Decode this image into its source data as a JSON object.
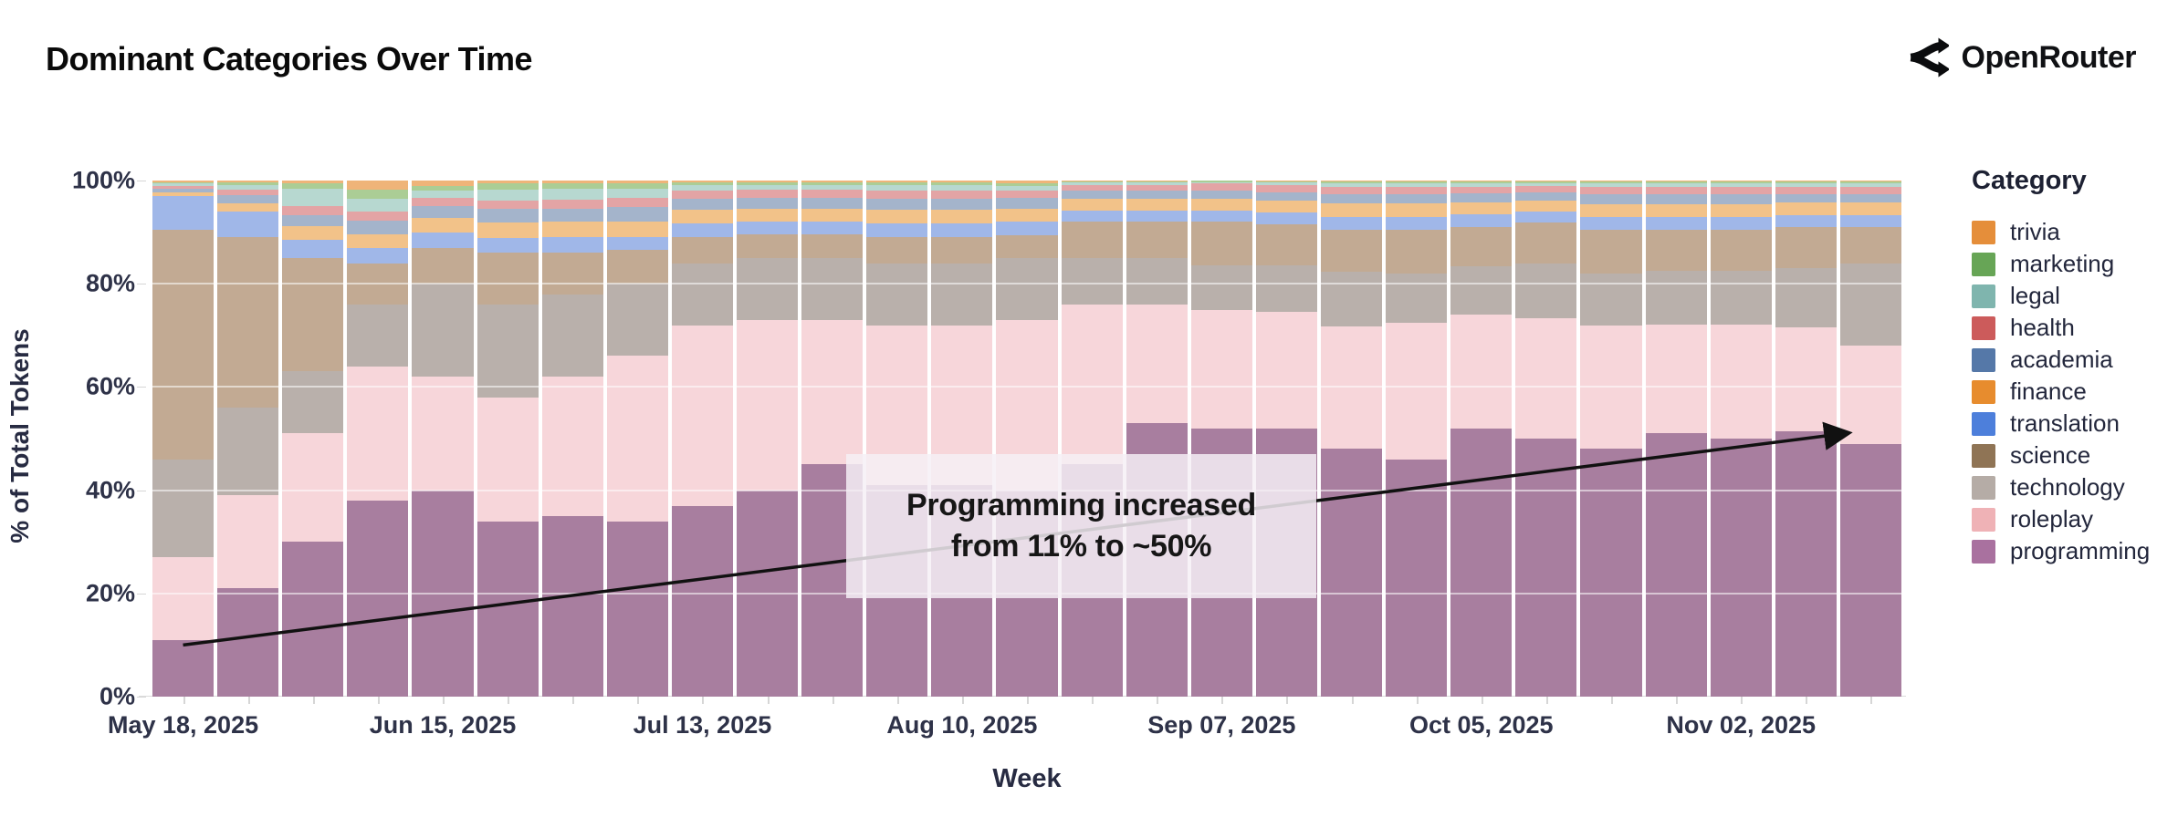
{
  "header": {
    "title": "Dominant Categories Over Time",
    "brand": "OpenRouter"
  },
  "chart_data": {
    "type": "bar",
    "variant": "stacked-normalized-weekly",
    "title": "Dominant Categories Over Time",
    "xlabel": "Week",
    "ylabel": "% of Total Tokens",
    "ylim": [
      0,
      100
    ],
    "ytick_values": [
      0,
      20,
      40,
      60,
      80,
      100
    ],
    "ytick_labels": [
      "0%",
      "20%",
      "40%",
      "60%",
      "80%",
      "100%"
    ],
    "grid": "horizontal-white-overlay",
    "x": [
      "May 18, 2025",
      "May 25, 2025",
      "Jun 01, 2025",
      "Jun 08, 2025",
      "Jun 15, 2025",
      "Jun 22, 2025",
      "Jun 29, 2025",
      "Jul 06, 2025",
      "Jul 13, 2025",
      "Jul 20, 2025",
      "Jul 27, 2025",
      "Aug 03, 2025",
      "Aug 10, 2025",
      "Aug 17, 2025",
      "Aug 24, 2025",
      "Aug 31, 2025",
      "Sep 07, 2025",
      "Sep 14, 2025",
      "Sep 21, 2025",
      "Sep 28, 2025",
      "Oct 05, 2025",
      "Oct 12, 2025",
      "Oct 19, 2025",
      "Oct 26, 2025",
      "Nov 02, 2025",
      "Nov 09, 2025",
      "Nov 16, 2025"
    ],
    "x_labeled_tick_indices": [
      0,
      4,
      8,
      12,
      16,
      20,
      24
    ],
    "x_labeled_ticks": [
      "May 18, 2025",
      "Jun 15, 2025",
      "Jul 13, 2025",
      "Aug 10, 2025",
      "Sep 07, 2025",
      "Oct 05, 2025",
      "Nov 02, 2025"
    ],
    "series": [
      {
        "name": "programming",
        "legend_color": "#A9719F",
        "fill": "#A87E9F",
        "values": [
          11,
          21,
          30,
          38,
          40,
          34,
          35,
          34,
          37,
          40,
          45,
          41,
          41,
          40,
          45,
          53,
          52,
          52,
          48,
          46,
          52,
          50,
          48,
          51,
          50,
          51.5,
          49
        ]
      },
      {
        "name": "roleplay",
        "legend_color": "#EFB2B6",
        "fill": "#F7D6DA",
        "values": [
          16,
          18,
          21,
          26,
          22,
          24,
          27,
          32,
          35,
          33,
          28,
          31,
          31,
          33,
          31,
          23,
          23,
          22.5,
          23.8,
          26.4,
          22,
          23.4,
          24,
          21,
          22,
          20,
          19
        ]
      },
      {
        "name": "technology",
        "legend_color": "#B5ACA6",
        "fill": "#B9B0AB",
        "values": [
          19,
          17,
          12,
          12,
          18,
          18,
          16,
          14,
          12,
          12,
          12,
          12,
          12,
          12,
          9,
          9,
          8.5,
          9,
          10.5,
          9.6,
          9.4,
          10.6,
          10,
          10.5,
          10.5,
          11.5,
          16
        ]
      },
      {
        "name": "science",
        "legend_color": "#8F7455",
        "fill": "#C2AA93",
        "values": [
          44.5,
          33,
          22,
          8,
          7,
          10,
          8,
          6.5,
          5,
          4.5,
          4.5,
          5,
          5,
          4.5,
          7,
          7,
          8.5,
          8,
          8.1,
          8.4,
          7.6,
          7.8,
          8.5,
          8,
          8,
          8,
          7
        ]
      },
      {
        "name": "translation",
        "legend_color": "#4D7FDB",
        "fill": "#A0B7E8",
        "values": [
          6.5,
          5,
          3.5,
          3,
          3,
          2.8,
          3,
          2.6,
          2.7,
          2.6,
          2.6,
          2.7,
          2.7,
          2.6,
          2.2,
          2.2,
          2.2,
          2.3,
          2.6,
          2.6,
          2.4,
          2.2,
          2.5,
          2.5,
          2.5,
          2.3,
          2.3
        ]
      },
      {
        "name": "finance",
        "legend_color": "#E78C2E",
        "fill": "#F2C289",
        "values": [
          0.8,
          1.6,
          2.6,
          2.6,
          2.8,
          3,
          3,
          3,
          2.6,
          2.5,
          2.5,
          2.6,
          2.6,
          2.5,
          2.2,
          2.2,
          2.3,
          2.3,
          2.6,
          2.6,
          2.4,
          2.1,
          2.5,
          2.5,
          2.5,
          2.4,
          2.4
        ]
      },
      {
        "name": "academia",
        "legend_color": "#5578A8",
        "fill": "#A4B4CB",
        "values": [
          0.7,
          1.5,
          2.2,
          2.6,
          2.2,
          2.7,
          2.6,
          2.7,
          2.2,
          2.1,
          2.1,
          2.2,
          2.2,
          2.1,
          1.6,
          1.6,
          1.6,
          1.7,
          1.8,
          1.8,
          1.7,
          1.6,
          1.8,
          1.8,
          1.8,
          1.7,
          1.7
        ]
      },
      {
        "name": "health",
        "legend_color": "#CC5B5B",
        "fill": "#E3A4A5",
        "values": [
          0.5,
          1.2,
          1.7,
          1.8,
          1.6,
          1.7,
          1.7,
          1.8,
          1.6,
          1.5,
          1.5,
          1.6,
          1.6,
          1.5,
          1.2,
          1.2,
          1.3,
          1.3,
          1.4,
          1.4,
          1.3,
          1.2,
          1.4,
          1.4,
          1.4,
          1.3,
          1.3
        ]
      },
      {
        "name": "legal",
        "legend_color": "#7FB5AE",
        "fill": "#B7D8D0",
        "values": [
          0.4,
          0.8,
          3.5,
          2.5,
          1.4,
          2,
          2.2,
          1.9,
          1.1,
          0.9,
          0.9,
          1,
          1,
          0.9,
          0.4,
          0.4,
          0.3,
          0.5,
          0.7,
          0.7,
          0.7,
          0.6,
          0.8,
          0.8,
          0.8,
          0.7,
          0.8
        ]
      },
      {
        "name": "marketing",
        "legend_color": "#67A556",
        "fill": "#ABCD95",
        "values": [
          0.3,
          0.5,
          1,
          1.8,
          1,
          1.3,
          1,
          1,
          0.5,
          0.5,
          0.5,
          0.5,
          0.5,
          0.5,
          0.3,
          0.3,
          0.25,
          0.3,
          0.4,
          0.4,
          0.4,
          0.4,
          0.4,
          0.4,
          0.4,
          0.5,
          0.4
        ]
      },
      {
        "name": "trivia",
        "legend_color": "#E58E3A",
        "fill": "#EFB479",
        "values": [
          0.3,
          0.4,
          0.5,
          1.7,
          1,
          0.5,
          0.5,
          0.5,
          0.3,
          0.4,
          0.4,
          0.4,
          0.4,
          0.5,
          0.1,
          0.1,
          0.05,
          0.1,
          0.1,
          0.1,
          0.1,
          0.1,
          0.1,
          0.1,
          0.1,
          0.1,
          0.1
        ]
      }
    ],
    "legend": {
      "title": "Category",
      "position": "right",
      "items_top_to_bottom": [
        "trivia",
        "marketing",
        "legal",
        "health",
        "academia",
        "finance",
        "translation",
        "science",
        "technology",
        "roleplay",
        "programming"
      ]
    },
    "annotation": {
      "line1": "Programming increased",
      "line2": "from 11% to ~50%",
      "box": {
        "left_pct": 39.7,
        "width_pct": 26.8,
        "top_value_pct": 47,
        "bottom_value_pct": 19
      },
      "arrow": {
        "from_week_index": 0,
        "from_value_pct": 10,
        "to_week_index": 25.6,
        "to_value_pct": 51,
        "color": "#111111"
      }
    }
  }
}
